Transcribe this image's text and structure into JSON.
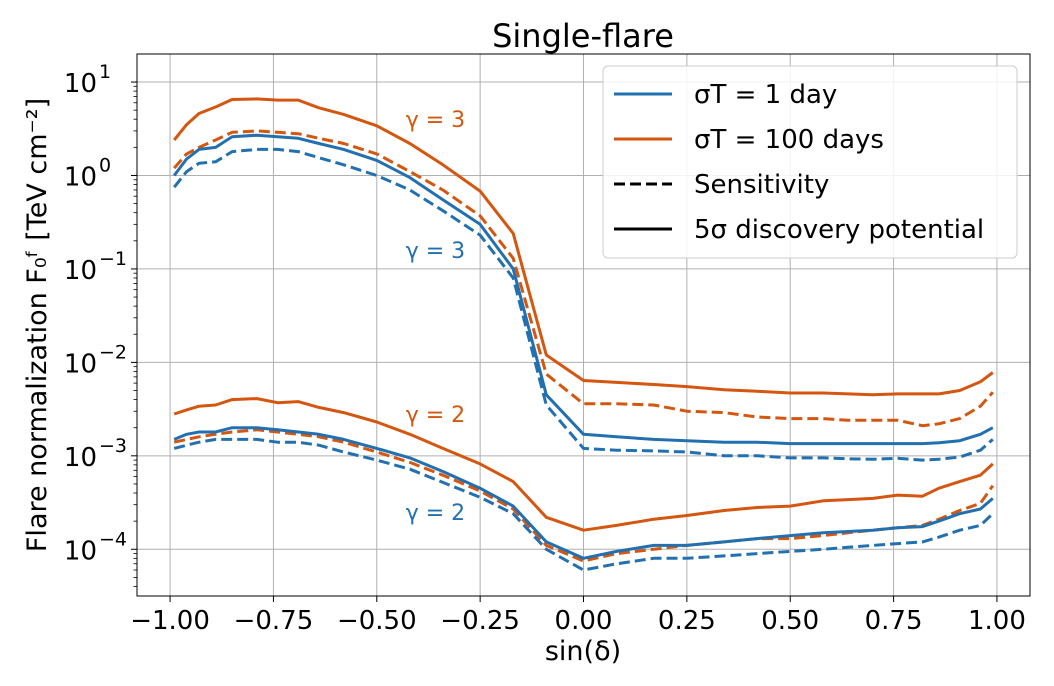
{
  "chart_data": {
    "type": "line",
    "title": "Single-flare",
    "xlabel": "sin(δ)",
    "ylabel": "Flare normalization F₀ᶠ [TeV cm⁻²]",
    "xlim": [
      -1.08,
      1.08
    ],
    "ylim_log10": [
      -4.5,
      1.3
    ],
    "yscale": "log",
    "grid": true,
    "legend_position": "top-right",
    "colors": {
      "blue": "#2270b0",
      "orange": "#d4560f"
    },
    "x_ticks": [
      -1.0,
      -0.75,
      -0.5,
      -0.25,
      0.0,
      0.25,
      0.5,
      0.75,
      1.0
    ],
    "x_tick_labels": [
      "−1.00",
      "−0.75",
      "−0.50",
      "−0.25",
      "0.00",
      "0.25",
      "0.50",
      "0.75",
      "1.00"
    ],
    "y_ticks": [
      {
        "base": "10",
        "exp": "1",
        "log": 1
      },
      {
        "base": "10",
        "exp": "0",
        "log": 0
      },
      {
        "base": "10",
        "exp": "−1",
        "log": -1
      },
      {
        "base": "10",
        "exp": "−2",
        "log": -2
      },
      {
        "base": "10",
        "exp": "−3",
        "log": -3
      },
      {
        "base": "10",
        "exp": "−4",
        "log": -4
      }
    ],
    "legend": [
      {
        "label": "σT = 1 day",
        "style": "solid",
        "color": "#2270b0"
      },
      {
        "label": "σT = 100 days",
        "style": "solid",
        "color": "#d4560f"
      },
      {
        "label": "Sensitivity",
        "style": "dashed",
        "color": "#000000"
      },
      {
        "label": "5σ discovery potential",
        "style": "solid",
        "color": "#000000"
      }
    ],
    "annotations": [
      {
        "text": "γ = 3",
        "color": "#d4560f",
        "x": -0.43,
        "y": 4.0
      },
      {
        "text": "γ = 3",
        "color": "#2270b0",
        "x": -0.43,
        "y": 0.16
      },
      {
        "text": "γ = 2",
        "color": "#d4560f",
        "x": -0.43,
        "y": 0.0028
      },
      {
        "text": "γ = 2",
        "color": "#2270b0",
        "x": -0.43,
        "y": 0.00025
      }
    ],
    "x": [
      -0.99,
      -0.96,
      -0.93,
      -0.89,
      -0.85,
      -0.79,
      -0.74,
      -0.69,
      -0.64,
      -0.58,
      -0.5,
      -0.42,
      -0.34,
      -0.25,
      -0.17,
      -0.09,
      0.0,
      0.08,
      0.17,
      0.25,
      0.34,
      0.42,
      0.5,
      0.58,
      0.64,
      0.7,
      0.76,
      0.82,
      0.86,
      0.91,
      0.96,
      0.99
    ],
    "series": [
      {
        "name": "σT = 100 days, discovery, γ=3",
        "color": "#d4560f",
        "style": "solid",
        "values": [
          2.4,
          3.5,
          4.6,
          5.4,
          6.5,
          6.6,
          6.4,
          6.4,
          5.3,
          4.5,
          3.4,
          2.2,
          1.3,
          0.68,
          0.24,
          0.012,
          0.0064,
          0.0061,
          0.0058,
          0.0055,
          0.0051,
          0.0049,
          0.0047,
          0.0047,
          0.0046,
          0.0045,
          0.0046,
          0.0046,
          0.0046,
          0.005,
          0.0062,
          0.0078
        ]
      },
      {
        "name": "σT = 100 days, sensitivity, γ=3",
        "color": "#d4560f",
        "style": "dashed",
        "values": [
          1.2,
          1.7,
          2.0,
          2.4,
          2.9,
          3.0,
          2.9,
          2.8,
          2.5,
          2.2,
          1.7,
          1.1,
          0.7,
          0.37,
          0.13,
          0.0075,
          0.0036,
          0.0036,
          0.0035,
          0.003,
          0.0029,
          0.0026,
          0.0025,
          0.0025,
          0.0024,
          0.0024,
          0.0024,
          0.0021,
          0.0022,
          0.0025,
          0.0034,
          0.0048
        ]
      },
      {
        "name": "σT = 1 day, discovery, γ=3",
        "color": "#2270b0",
        "style": "solid",
        "values": [
          1.0,
          1.5,
          1.9,
          2.0,
          2.6,
          2.7,
          2.6,
          2.5,
          2.2,
          1.9,
          1.45,
          0.95,
          0.55,
          0.3,
          0.1,
          0.0045,
          0.0017,
          0.0016,
          0.0015,
          0.00145,
          0.0014,
          0.0014,
          0.00135,
          0.00135,
          0.00135,
          0.00135,
          0.00135,
          0.00135,
          0.00138,
          0.00145,
          0.0017,
          0.002
        ]
      },
      {
        "name": "σT = 1 day, sensitivity, γ=3",
        "color": "#2270b0",
        "style": "dashed",
        "values": [
          0.75,
          1.1,
          1.35,
          1.4,
          1.8,
          1.9,
          1.9,
          1.8,
          1.55,
          1.3,
          1.0,
          0.7,
          0.42,
          0.23,
          0.08,
          0.0035,
          0.0012,
          0.00115,
          0.00113,
          0.0011,
          0.001,
          0.001,
          0.00095,
          0.00095,
          0.00093,
          0.00092,
          0.00094,
          0.0009,
          0.00092,
          0.00097,
          0.00115,
          0.0015
        ]
      },
      {
        "name": "σT = 100 days, discovery, γ=2",
        "color": "#d4560f",
        "style": "solid",
        "values": [
          0.0028,
          0.0031,
          0.0034,
          0.0035,
          0.004,
          0.0041,
          0.0037,
          0.0038,
          0.0033,
          0.0029,
          0.0023,
          0.0017,
          0.0012,
          0.00082,
          0.00053,
          0.00022,
          0.00016,
          0.00018,
          0.00021,
          0.00023,
          0.00026,
          0.00028,
          0.00029,
          0.00033,
          0.00034,
          0.00035,
          0.00038,
          0.00037,
          0.00045,
          0.00053,
          0.00062,
          0.00082
        ]
      },
      {
        "name": "σT = 100 days, sensitivity, γ=2",
        "color": "#d4560f",
        "style": "dashed",
        "values": [
          0.0014,
          0.0015,
          0.0016,
          0.0017,
          0.0018,
          0.0019,
          0.0018,
          0.0017,
          0.0016,
          0.0014,
          0.0011,
          0.00085,
          0.00062,
          0.00042,
          0.00027,
          0.00011,
          7.5e-05,
          9e-05,
          0.0001,
          0.00011,
          0.00012,
          0.00013,
          0.00013,
          0.00014,
          0.00015,
          0.00016,
          0.00017,
          0.00018,
          0.00021,
          0.00026,
          0.00031,
          0.00048
        ]
      },
      {
        "name": "σT = 1 day, discovery, γ=2",
        "color": "#2270b0",
        "style": "solid",
        "values": [
          0.0015,
          0.0017,
          0.0018,
          0.0018,
          0.002,
          0.002,
          0.0019,
          0.0018,
          0.0017,
          0.0015,
          0.0012,
          0.00095,
          0.00068,
          0.00045,
          0.00029,
          0.00012,
          8e-05,
          9.5e-05,
          0.00011,
          0.00011,
          0.00012,
          0.00013,
          0.00014,
          0.00015,
          0.000155,
          0.00016,
          0.00017,
          0.000175,
          0.0002,
          0.00024,
          0.00027,
          0.00035
        ]
      },
      {
        "name": "σT = 1 day, sensitivity, γ=2",
        "color": "#2270b0",
        "style": "dashed",
        "values": [
          0.0012,
          0.0013,
          0.0014,
          0.0015,
          0.0015,
          0.0015,
          0.0014,
          0.0014,
          0.0013,
          0.0011,
          0.0009,
          0.00072,
          0.00052,
          0.00036,
          0.00024,
          0.0001,
          6e-05,
          7e-05,
          8e-05,
          8e-05,
          8.5e-05,
          9e-05,
          9.5e-05,
          0.0001,
          0.000105,
          0.00011,
          0.000115,
          0.00012,
          0.000135,
          0.00016,
          0.00018,
          0.00024
        ]
      }
    ]
  }
}
